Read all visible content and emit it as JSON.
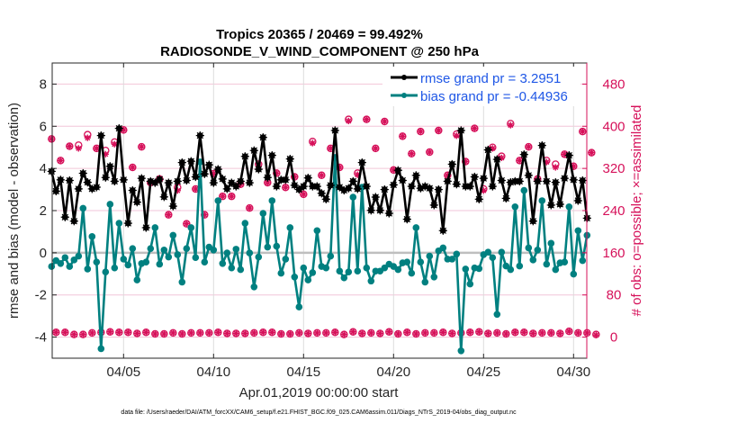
{
  "chart_data": {
    "type": "line",
    "title_line1": "Tropics 20365 / 20469 = 99.492%",
    "title_line2": "RADIOSONDE_V_WIND_COMPONENT @ 250 hPa",
    "xlabel": "Apr.01,2019 00:00:00 start",
    "ylabel": "rmse and bias (model - observation)",
    "ylabel_right": "# of obs: o=possible; ×=assimilated",
    "footnote": "data file: /Users/raeder/DAI/ATM_forcXX/CAM6_setup/f.e21.FHIST_BGC.f09_025.CAM6assim.011/Diags_NTrS_2019-04/obs_diag_output.nc",
    "x_unit": "days since 2019-04-01 00:00",
    "x_step_days": 0.25,
    "xlim": [
      0,
      29.75
    ],
    "xticks": [
      4,
      9,
      14,
      19,
      24,
      29
    ],
    "xtick_labels": [
      "04/05",
      "04/10",
      "04/15",
      "04/20",
      "04/25",
      "04/30"
    ],
    "ylim": [
      -5,
      9
    ],
    "yticks": [
      -4,
      -2,
      0,
      2,
      4,
      6,
      8
    ],
    "ytick_labels": [
      "-4",
      "-2",
      "0",
      "2",
      "4",
      "6",
      "8"
    ],
    "ylim_right": [
      -40,
      520
    ],
    "yticks_right": [
      0,
      80,
      160,
      240,
      320,
      400,
      480
    ],
    "ytick_labels_right": [
      "0",
      "80",
      "160",
      "240",
      "320",
      "400",
      "480"
    ],
    "grid": "horizontal-and-vertical",
    "zero_line": true,
    "legend_position": "top-right",
    "colors": {
      "rmse": "#000000",
      "bias": "#008080",
      "obs": "#d6115a",
      "legend_text": "#1f57e6",
      "zero_line": "#bfbfbf",
      "grid_h": "#f2c6d8",
      "grid_v": "#dcdcdc"
    },
    "series": [
      {
        "name": "rmse grand pr = 3.2951",
        "axis": "left",
        "values": [
          3.86,
          2.92,
          3.46,
          1.69,
          3.43,
          1.5,
          3.03,
          3.77,
          3.34,
          3.03,
          3.11,
          5.56,
          3.57,
          4.1,
          3.39,
          5.9,
          3.46,
          1.4,
          2.96,
          2.4,
          3.53,
          1.19,
          3.39,
          3.32,
          3.49,
          2.65,
          3.32,
          2.21,
          3.39,
          4.28,
          3.43,
          4.34,
          3.6,
          5.56,
          3.74,
          4.17,
          3.32,
          3.96,
          3.5,
          3.03,
          3.32,
          3.15,
          3.39,
          4.57,
          3.32,
          4.85,
          3.96,
          5.47,
          3.57,
          4.62,
          3.15,
          3.46,
          3.46,
          4.45,
          3.2,
          3.0,
          3.15,
          3.55,
          3.15,
          3.15,
          2.82,
          2.54,
          3.2,
          5.8,
          3.11,
          2.96,
          3.06,
          3.39,
          3.03,
          4.28,
          3.15,
          2.01,
          2.64,
          2.01,
          3.0,
          1.87,
          3.22,
          3.91,
          3.43,
          1.59,
          3.15,
          3.67,
          3.06,
          3.15,
          3.06,
          2.26,
          3.0,
          1.05,
          3.39,
          4.2,
          3.25,
          5.8,
          3.15,
          3.15,
          3.6,
          2.54,
          3.53,
          4.88,
          3.15,
          4.43,
          3.43,
          2.58,
          3.34,
          3.39,
          3.39,
          4.66,
          3.67,
          1.5,
          3.39,
          5.09,
          3.39,
          2.26,
          3.34,
          2.3,
          3.53,
          4.62,
          3.46,
          2.47,
          3.43,
          1.64
        ]
      },
      {
        "name": "bias grand pr = -0.44936",
        "axis": "left",
        "values": [
          -0.65,
          -0.37,
          -0.51,
          -0.23,
          -0.65,
          -0.34,
          -0.16,
          2.11,
          -0.77,
          0.77,
          -0.44,
          -4.55,
          -0.91,
          2.3,
          -0.72,
          1.4,
          -0.3,
          -0.58,
          0.2,
          -1.29,
          -0.51,
          -0.44,
          0.2,
          1.19,
          -0.54,
          0.13,
          -0.2,
          0.83,
          -0.09,
          -1.39,
          0.2,
          1.19,
          -0.23,
          4.31,
          -0.44,
          0.27,
          0.13,
          2.47,
          -0.51,
          -0.01,
          -0.72,
          0.17,
          -0.8,
          1.4,
          -0.01,
          -1.62,
          -0.2,
          1.87,
          0.27,
          2.47,
          0.31,
          -0.97,
          -0.3,
          1.19,
          -1.15,
          -2.57,
          -0.72,
          -1.29,
          -0.94,
          1.05,
          -0.65,
          -0.72,
          -0.16,
          4.52,
          -0.87,
          -1.19,
          -0.91,
          2.64,
          -0.87,
          3.11,
          -0.72,
          -1.34,
          -0.87,
          -0.87,
          -0.72,
          -0.54,
          -0.65,
          -0.8,
          -0.48,
          -0.44,
          -0.97,
          1.19,
          -0.44,
          -1.39,
          -0.16,
          -1.15,
          0.09,
          0.23,
          -0.3,
          -0.3,
          -0.06,
          -4.65,
          -0.77,
          -1.48,
          -0.72,
          -0.75,
          -0.09,
          0.03,
          -0.23,
          -2.92,
          0.03,
          -0.63,
          -0.8,
          2.18,
          -0.63,
          2.96,
          0.23,
          -0.34,
          0.13,
          2.47,
          -0.54,
          0.45,
          -0.8,
          -0.48,
          -0.44,
          2.18,
          -1.01,
          1.05,
          -0.37,
          0.83
        ]
      },
      {
        "name": "obs possible",
        "axis": "right",
        "marker": "o",
        "values": [
          376,
          9,
          335,
          9,
          362,
          5,
          364,
          5,
          384,
          8,
          358,
          9,
          354,
          10,
          370,
          9,
          393,
          9,
          322,
          7,
          361,
          9,
          293,
          6,
          300,
          6,
          232,
          8,
          284,
          6,
          215,
          8,
          281,
          8,
          232,
          8,
          310,
          9,
          267,
          7,
          267,
          7,
          290,
          7,
          245,
          8,
          328,
          9,
          293,
          9,
          311,
          6,
          284,
          6,
          304,
          8,
          271,
          7,
          371,
          8,
          307,
          8,
          358,
          9,
          322,
          5,
          413,
          10,
          311,
          7,
          413,
          8,
          358,
          7,
          409,
          10,
          317,
          6,
          381,
          9,
          348,
          6,
          390,
          8,
          351,
          8,
          392,
          9,
          307,
          7,
          385,
          8,
          333,
          9,
          396,
          10,
          281,
          7,
          360,
          8,
          343,
          6,
          405,
          9,
          335,
          9,
          361,
          7,
          300,
          8,
          335,
          8,
          328,
          7,
          347,
          11,
          324,
          8,
          390,
          8,
          350,
          5
        ]
      },
      {
        "name": "obs assimilated",
        "axis": "right",
        "marker": "*",
        "values": [
          376,
          9,
          335,
          9,
          362,
          5,
          358,
          5,
          378,
          8,
          358,
          9,
          347,
          10,
          366,
          9,
          393,
          9,
          322,
          7,
          361,
          9,
          293,
          6,
          300,
          6,
          232,
          8,
          278,
          6,
          215,
          8,
          281,
          8,
          232,
          8,
          310,
          9,
          267,
          7,
          267,
          7,
          290,
          7,
          245,
          8,
          325,
          9,
          293,
          9,
          311,
          6,
          284,
          6,
          304,
          8,
          271,
          7,
          368,
          8,
          307,
          8,
          358,
          9,
          322,
          5,
          410,
          10,
          308,
          7,
          413,
          8,
          358,
          7,
          409,
          10,
          317,
          6,
          381,
          9,
          348,
          6,
          390,
          8,
          351,
          8,
          392,
          9,
          307,
          7,
          382,
          8,
          333,
          9,
          396,
          10,
          278,
          7,
          358,
          8,
          340,
          6,
          402,
          9,
          335,
          9,
          361,
          7,
          300,
          8,
          332,
          8,
          322,
          7,
          347,
          11,
          324,
          8,
          390,
          8,
          350,
          4
        ]
      }
    ]
  }
}
